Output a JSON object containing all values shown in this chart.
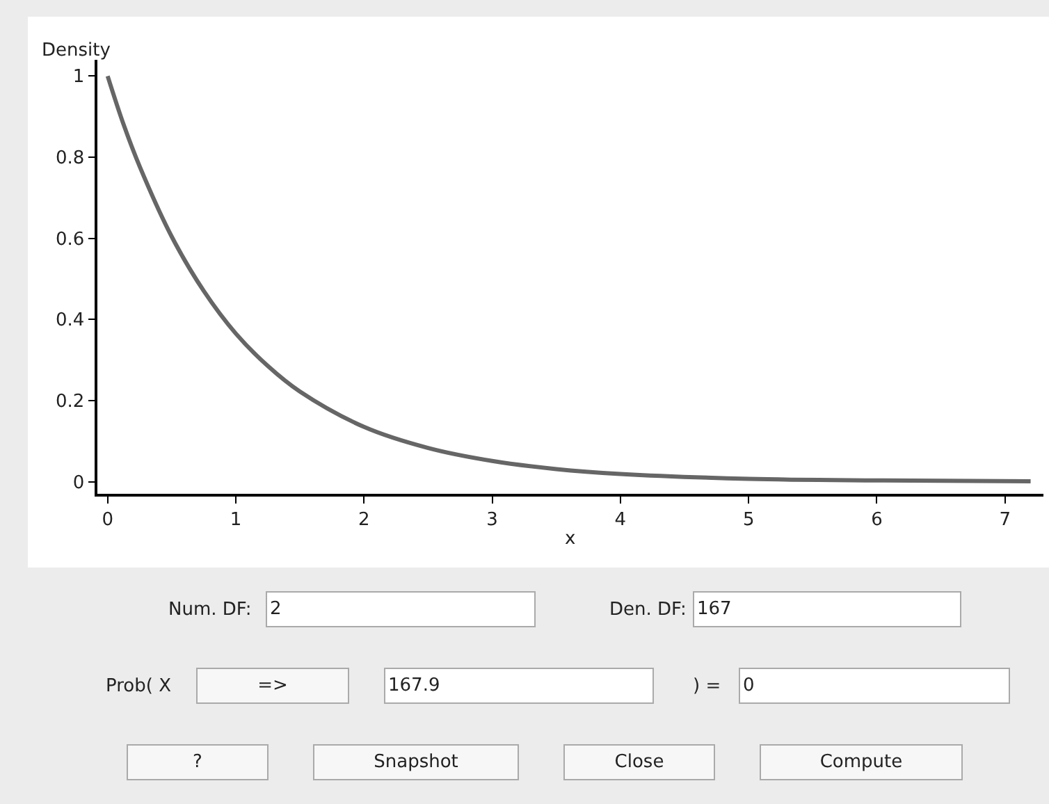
{
  "chart_data": {
    "type": "line",
    "xlabel": "x",
    "ylabel": "Density",
    "x": [
      0,
      0.125,
      0.25,
      0.5,
      0.75,
      1,
      1.25,
      1.5,
      2,
      2.5,
      3,
      3.5,
      4,
      5,
      6,
      7.2
    ],
    "series": [
      {
        "color": "#666666",
        "values": [
          1,
          0.88,
          0.777,
          0.604,
          0.47,
          0.365,
          0.285,
          0.222,
          0.135,
          0.083,
          0.051,
          0.031,
          0.019,
          0.007,
          0.003,
          0.001
        ]
      }
    ],
    "xlim": [
      -0.08,
      7.3
    ],
    "ylim": [
      -0.03,
      1.04
    ],
    "xticks": [
      0,
      1,
      2,
      3,
      4,
      5,
      6,
      7
    ],
    "yticks": [
      0,
      0.2,
      0.4,
      0.6,
      0.8,
      1
    ],
    "marker": "none",
    "line_style": "solid",
    "annotations": [
      "Num. DF:",
      "2",
      "Den. DF:",
      "167",
      "Prob( X",
      "=>",
      "167.9",
      ") =",
      "0",
      "?",
      "Snapshot",
      "Close",
      "Compute"
    ]
  }
}
